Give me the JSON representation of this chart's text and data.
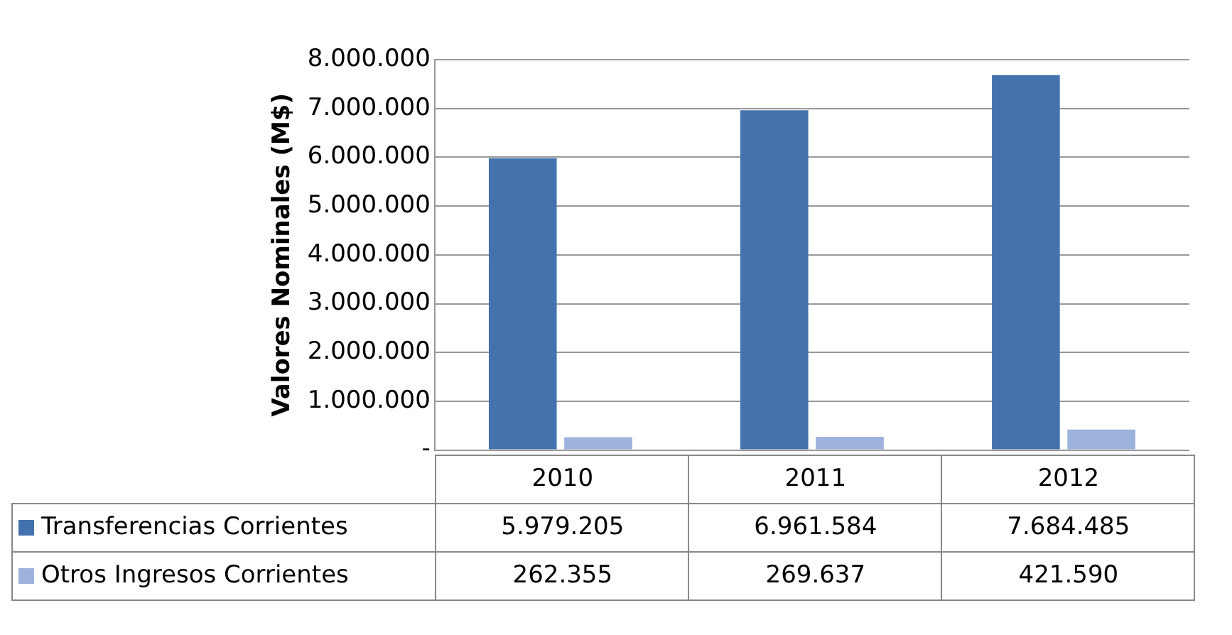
{
  "chart_data": {
    "type": "bar",
    "ylabel": "Valores Nominales (M$)",
    "categories": [
      "2010",
      "2011",
      "2012"
    ],
    "series": [
      {
        "name": "Transferencias Corrientes",
        "color": "#4372ad",
        "values": [
          5979205,
          6961584,
          7684485
        ],
        "value_labels": [
          "5.979.205",
          "6.961.584",
          "7.684.485"
        ]
      },
      {
        "name": "Otros Ingresos Corrientes",
        "color": "#9db3dc",
        "values": [
          262355,
          269637,
          421590
        ],
        "value_labels": [
          "262.355",
          "269.637",
          "421.590"
        ]
      }
    ],
    "ylim": [
      0,
      8000000
    ],
    "yticks": [
      {
        "value": 0,
        "label": "-"
      },
      {
        "value": 1000000,
        "label": "1.000.000"
      },
      {
        "value": 2000000,
        "label": "2.000.000"
      },
      {
        "value": 3000000,
        "label": "3.000.000"
      },
      {
        "value": 4000000,
        "label": "4.000.000"
      },
      {
        "value": 5000000,
        "label": "5.000.000"
      },
      {
        "value": 6000000,
        "label": "6.000.000"
      },
      {
        "value": 7000000,
        "label": "7.000.000"
      },
      {
        "value": 8000000,
        "label": "8.000.000"
      }
    ],
    "grid": "y",
    "legend": "bottom"
  }
}
